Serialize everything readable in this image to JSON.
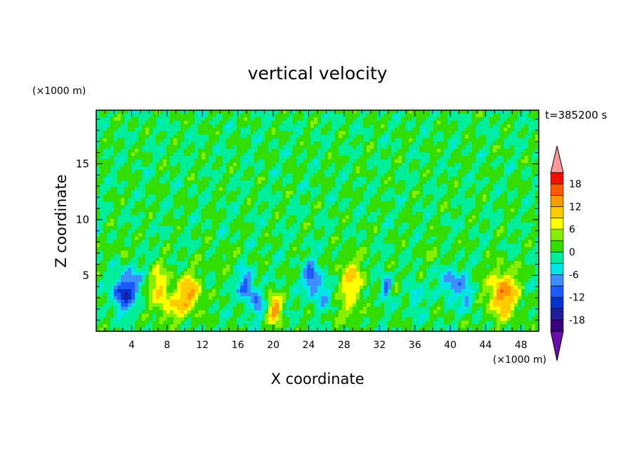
{
  "chart_data": {
    "type": "heatmap",
    "title": "vertical velocity",
    "xlabel": "X coordinate",
    "ylabel": "Z coordinate",
    "x_unit": "(×1000 m)",
    "y_unit": "(×1000 m)",
    "time_label": "t=385200 s",
    "xlim": [
      0,
      50
    ],
    "ylim": [
      0,
      19.8
    ],
    "x_ticks": [
      4,
      8,
      12,
      16,
      20,
      24,
      28,
      32,
      36,
      40,
      44,
      48
    ],
    "y_ticks": [
      5,
      10,
      15
    ],
    "colorbar": {
      "levels": [
        -21,
        -18,
        -15,
        -12,
        -9,
        -6,
        -3,
        0,
        3,
        6,
        9,
        12,
        15,
        18,
        21
      ],
      "tick_labels": [
        "18",
        "12",
        "6",
        "0",
        "-6",
        "-12",
        "-18"
      ],
      "tick_values": [
        18,
        12,
        6,
        0,
        -6,
        -12,
        -18
      ],
      "extend": "both"
    },
    "background_value": 0,
    "features": [
      {
        "x": 3.0,
        "z": 3.3,
        "value": -14,
        "sx": 1.1,
        "sz": 1.4
      },
      {
        "x": 4.0,
        "z": 4.5,
        "value": -7,
        "sx": 1.0,
        "sz": 1.5
      },
      {
        "x": 3.0,
        "z": 7.5,
        "value": 5,
        "sx": 0.5,
        "sz": 1.0
      },
      {
        "x": 7.2,
        "z": 3.8,
        "value": 9,
        "sx": 1.1,
        "sz": 2.0
      },
      {
        "x": 10.5,
        "z": 3.5,
        "value": 12,
        "sx": 1.4,
        "sz": 1.6
      },
      {
        "x": 9.0,
        "z": 2.0,
        "value": 6,
        "sx": 1.6,
        "sz": 1.2
      },
      {
        "x": 17.0,
        "z": 4.0,
        "value": -11,
        "sx": 0.9,
        "sz": 1.4
      },
      {
        "x": 18.3,
        "z": 2.4,
        "value": -9,
        "sx": 0.6,
        "sz": 1.0
      },
      {
        "x": 20.2,
        "z": 2.0,
        "value": 13,
        "sx": 0.8,
        "sz": 1.3
      },
      {
        "x": 24.3,
        "z": 4.8,
        "value": -10,
        "sx": 0.9,
        "sz": 1.5
      },
      {
        "x": 25.5,
        "z": 3.5,
        "value": -6,
        "sx": 1.0,
        "sz": 1.5
      },
      {
        "x": 28.8,
        "z": 4.5,
        "value": 9,
        "sx": 1.5,
        "sz": 2.2
      },
      {
        "x": 28.6,
        "z": 1.5,
        "value": 4,
        "sx": 1.4,
        "sz": 0.9
      },
      {
        "x": 32.7,
        "z": 4.0,
        "value": -11,
        "sx": 0.6,
        "sz": 1.0
      },
      {
        "x": 34.0,
        "z": 4.2,
        "value": 5,
        "sx": 0.5,
        "sz": 0.8
      },
      {
        "x": 36.0,
        "z": 3.2,
        "value": -5,
        "sx": 0.8,
        "sz": 1.3
      },
      {
        "x": 40.3,
        "z": 4.3,
        "value": -9,
        "sx": 1.4,
        "sz": 1.3
      },
      {
        "x": 42.0,
        "z": 2.8,
        "value": -6,
        "sx": 0.8,
        "sz": 1.0
      },
      {
        "x": 46.0,
        "z": 3.3,
        "value": 14,
        "sx": 1.7,
        "sz": 2.1
      },
      {
        "x": 14.0,
        "z": 6.5,
        "value": 2,
        "sx": 2.0,
        "sz": 1.0
      },
      {
        "x": 38.0,
        "z": 7.0,
        "value": 2,
        "sx": 2.0,
        "sz": 1.0
      }
    ]
  }
}
